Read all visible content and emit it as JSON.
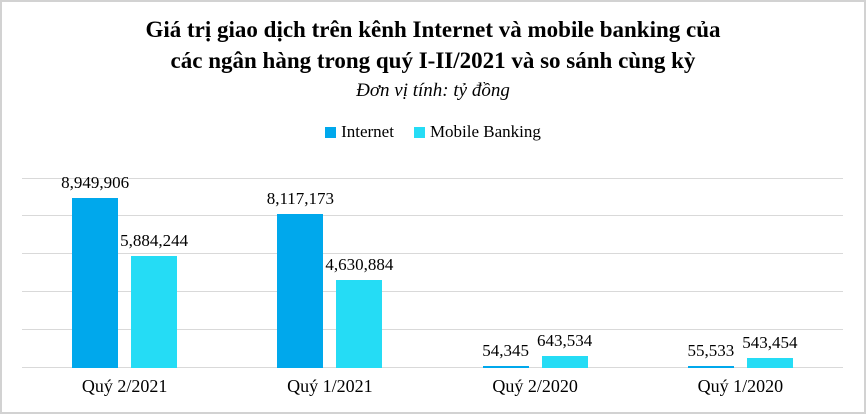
{
  "chart_data": {
    "type": "bar",
    "title": "Giá trị giao dịch trên kênh Internet và mobile banking của các ngân hàng trong quý I-II/2021 và so sánh cùng kỳ",
    "title_lines": [
      "Giá trị giao dịch trên kênh Internet và mobile banking của",
      "các ngân hàng trong quý I-II/2021 và so sánh cùng kỳ"
    ],
    "subtitle": "Đơn vị tính: tỷ đồng",
    "categories": [
      "Quý 2/2021",
      "Quý 1/2021",
      "Quý 2/2020",
      "Quý 1/2020"
    ],
    "series": [
      {
        "name": "Internet",
        "color": "#00a8ec",
        "values": [
          8949906,
          8117173,
          54345,
          55533
        ],
        "labels": [
          "8,949,906",
          "8,117,173",
          "54,345",
          "55,533"
        ]
      },
      {
        "name": "Mobile Banking",
        "color": "#25dcf5",
        "values": [
          5884244,
          4630884,
          643534,
          543454
        ],
        "labels": [
          "5,884,244",
          "4,630,884",
          "643,534",
          "543,454"
        ]
      }
    ],
    "xlabel": "",
    "ylabel": "",
    "ylim": [
      0,
      10000000
    ],
    "gridline_step": 2000000,
    "grid": true,
    "y_axis_labels_visible": false,
    "legend_position": "top",
    "colors": {
      "gridline": "#d9d9d9",
      "frame_border": "#d2d2d2",
      "text": "#000000",
      "background": "#ffffff"
    }
  }
}
